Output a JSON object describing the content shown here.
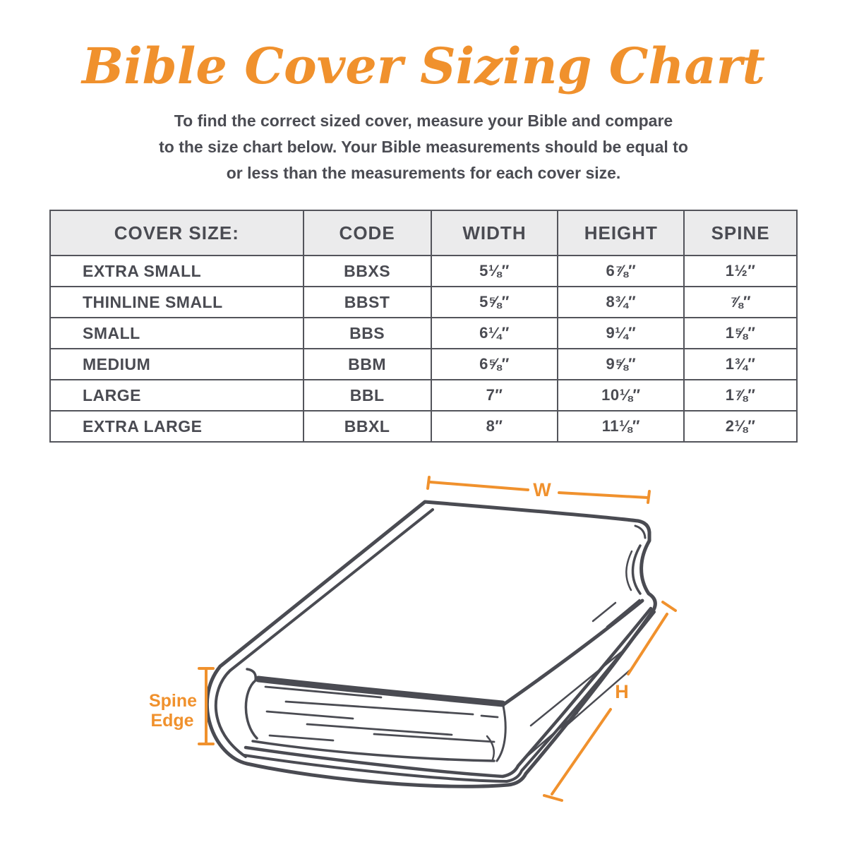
{
  "title": "Bible Cover Sizing Chart",
  "intro": {
    "line1": "To find the correct sized cover, measure your Bible and compare",
    "line2": "to the size chart below. Your Bible measurements should be equal to",
    "line3": "or less than the measurements for each cover size."
  },
  "colors": {
    "accent": "#F0912D",
    "ink": "#4A4B52",
    "header_bg": "#EBEBEC",
    "border": "#53545B"
  },
  "table": {
    "headers": [
      "COVER SIZE:",
      "CODE",
      "WIDTH",
      "HEIGHT",
      "SPINE"
    ],
    "rows": [
      [
        "EXTRA SMALL",
        "BBXS",
        "5⅛″",
        "6⅞″",
        "1½″"
      ],
      [
        "THINLINE SMALL",
        "BBST",
        "5⅝″",
        "8¾″",
        "⅞″"
      ],
      [
        "SMALL",
        "BBS",
        "6¼″",
        "9¼″",
        "1⅝″"
      ],
      [
        "MEDIUM",
        "BBM",
        "6⅝″",
        "9⅝″",
        "1¾″"
      ],
      [
        "LARGE",
        "BBL",
        "7″",
        "10⅛″",
        "1⅞″"
      ],
      [
        "EXTRA LARGE",
        "BBXL",
        "8″",
        "11⅛″",
        "2⅛″"
      ]
    ]
  },
  "diagram": {
    "width_label": "W",
    "height_label": "H",
    "spine_label_line1": "Spine",
    "spine_label_line2": "Edge"
  }
}
